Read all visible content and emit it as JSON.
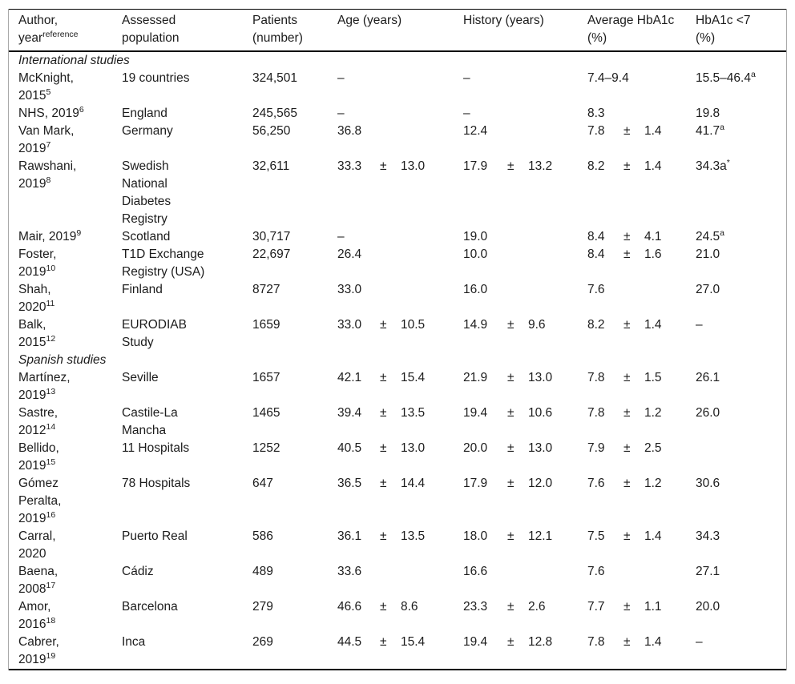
{
  "table": {
    "headers": {
      "author": {
        "line1": "Author,",
        "line2": "year",
        "sup": "reference"
      },
      "population": "Assessed\npopulation",
      "patients": "Patients\n(number)",
      "age": "Age (years)",
      "history": "History (years)",
      "avg_hba1c": "Average HbA1c\n(%)",
      "hba1c_lt7": "HbA1c <7\n(%)"
    },
    "rows": [
      {
        "type": "section",
        "label": "International studies"
      },
      {
        "type": "study",
        "author_lines": [
          "McKnight,",
          "2015"
        ],
        "author_sup": "5",
        "population": "19 countries",
        "patients": "324,501",
        "age": {
          "v": "–",
          "pm": "",
          "sd": ""
        },
        "history": {
          "v": "–",
          "pm": "",
          "sd": ""
        },
        "hba1c": {
          "v": "7.4–9.4",
          "pm": "",
          "sd": ""
        },
        "lt7": {
          "v": "15.5–46.4",
          "sup": "a"
        }
      },
      {
        "type": "study",
        "author_lines": [
          "NHS, 2019"
        ],
        "author_sup": "6",
        "population": "England",
        "patients": "245,565",
        "age": {
          "v": "–",
          "pm": "",
          "sd": ""
        },
        "history": {
          "v": "–",
          "pm": "",
          "sd": ""
        },
        "hba1c": {
          "v": "8.3",
          "pm": "",
          "sd": ""
        },
        "lt7": {
          "v": "19.8",
          "sup": ""
        }
      },
      {
        "type": "study",
        "author_lines": [
          "Van Mark,",
          "2019"
        ],
        "author_sup": "7",
        "population": "Germany",
        "patients": "56,250",
        "age": {
          "v": "36.8",
          "pm": "",
          "sd": ""
        },
        "history": {
          "v": "12.4",
          "pm": "",
          "sd": ""
        },
        "hba1c": {
          "v": "7.8",
          "pm": "±",
          "sd": "1.4"
        },
        "lt7": {
          "v": "41.7",
          "sup": "a"
        }
      },
      {
        "type": "study",
        "author_lines": [
          "Rawshani,",
          "2019"
        ],
        "author_sup": "8",
        "population": "Swedish\nNational\nDiabetes\nRegistry",
        "patients": "32,611",
        "age": {
          "v": "33.3",
          "pm": "±",
          "sd": "13.0"
        },
        "history": {
          "v": "17.9",
          "pm": "±",
          "sd": "13.2"
        },
        "hba1c": {
          "v": "8.2",
          "pm": "±",
          "sd": "1.4"
        },
        "lt7": {
          "v": "34.3a",
          "sup": "*"
        }
      },
      {
        "type": "study",
        "author_lines": [
          "Mair, 2019"
        ],
        "author_sup": "9",
        "population": "Scotland",
        "patients": "30,717",
        "age": {
          "v": "–",
          "pm": "",
          "sd": ""
        },
        "history": {
          "v": "19.0",
          "pm": "",
          "sd": ""
        },
        "hba1c": {
          "v": "8.4",
          "pm": "±",
          "sd": "4.1"
        },
        "lt7": {
          "v": "24.5",
          "sup": "a"
        }
      },
      {
        "type": "study",
        "author_lines": [
          "Foster,",
          "2019"
        ],
        "author_sup": "10",
        "population": "T1D Exchange\nRegistry (USA)",
        "patients": "22,697",
        "age": {
          "v": "26.4",
          "pm": "",
          "sd": ""
        },
        "history": {
          "v": "10.0",
          "pm": "",
          "sd": ""
        },
        "hba1c": {
          "v": "8.4",
          "pm": "±",
          "sd": "1.6"
        },
        "lt7": {
          "v": "21.0",
          "sup": ""
        }
      },
      {
        "type": "study",
        "author_lines": [
          "Shah,",
          "2020"
        ],
        "author_sup": "11",
        "population": "Finland",
        "patients": "8727",
        "age": {
          "v": "33.0",
          "pm": "",
          "sd": ""
        },
        "history": {
          "v": "16.0",
          "pm": "",
          "sd": ""
        },
        "hba1c": {
          "v": "7.6",
          "pm": "",
          "sd": ""
        },
        "lt7": {
          "v": "27.0",
          "sup": ""
        }
      },
      {
        "type": "study",
        "author_lines": [
          "Balk,",
          "2015"
        ],
        "author_sup": "12",
        "population": "EURODIAB\nStudy",
        "patients": "1659",
        "age": {
          "v": "33.0",
          "pm": "±",
          "sd": "10.5"
        },
        "history": {
          "v": "14.9",
          "pm": "±",
          "sd": "9.6"
        },
        "hba1c": {
          "v": "8.2",
          "pm": "±",
          "sd": "1.4"
        },
        "lt7": {
          "v": "–",
          "sup": ""
        }
      },
      {
        "type": "section",
        "label": "Spanish studies"
      },
      {
        "type": "study",
        "author_lines": [
          "Martínez,",
          "2019"
        ],
        "author_sup": "13",
        "population": "Seville",
        "patients": "1657",
        "age": {
          "v": "42.1",
          "pm": "±",
          "sd": "15.4"
        },
        "history": {
          "v": "21.9",
          "pm": "±",
          "sd": "13.0"
        },
        "hba1c": {
          "v": "7.8",
          "pm": "±",
          "sd": "1.5"
        },
        "lt7": {
          "v": "26.1",
          "sup": ""
        }
      },
      {
        "type": "study",
        "author_lines": [
          "Sastre,",
          "2012"
        ],
        "author_sup": "14",
        "population": "Castile-La\nMancha",
        "patients": "1465",
        "age": {
          "v": "39.4",
          "pm": "±",
          "sd": "13.5"
        },
        "history": {
          "v": "19.4",
          "pm": "±",
          "sd": "10.6"
        },
        "hba1c": {
          "v": "7.8",
          "pm": "±",
          "sd": "1.2"
        },
        "lt7": {
          "v": "26.0",
          "sup": ""
        }
      },
      {
        "type": "study",
        "author_lines": [
          "Bellido,",
          "2019"
        ],
        "author_sup": "15",
        "population": "11 Hospitals",
        "patients": "1252",
        "age": {
          "v": "40.5",
          "pm": "±",
          "sd": "13.0"
        },
        "history": {
          "v": "20.0",
          "pm": "±",
          "sd": "13.0"
        },
        "hba1c": {
          "v": "7.9",
          "pm": "±",
          "sd": "2.5"
        },
        "lt7": {
          "v": "",
          "sup": ""
        }
      },
      {
        "type": "study",
        "author_lines": [
          "Gómez",
          "Peralta,",
          "2019"
        ],
        "author_sup": "16",
        "population": "78 Hospitals",
        "patients": "647",
        "age": {
          "v": "36.5",
          "pm": "±",
          "sd": "14.4"
        },
        "history": {
          "v": "17.9",
          "pm": "±",
          "sd": "12.0"
        },
        "hba1c": {
          "v": "7.6",
          "pm": "±",
          "sd": "1.2"
        },
        "lt7": {
          "v": "30.6",
          "sup": ""
        }
      },
      {
        "type": "study",
        "author_lines": [
          "Carral,",
          "2020"
        ],
        "author_sup": "",
        "population": "Puerto Real",
        "patients": "586",
        "age": {
          "v": "36.1",
          "pm": "±",
          "sd": "13.5"
        },
        "history": {
          "v": "18.0",
          "pm": "±",
          "sd": "12.1"
        },
        "hba1c": {
          "v": "7.5",
          "pm": "±",
          "sd": "1.4"
        },
        "lt7": {
          "v": "34.3",
          "sup": ""
        }
      },
      {
        "type": "study",
        "author_lines": [
          "Baena,",
          "2008"
        ],
        "author_sup": "17",
        "population": "Cádiz",
        "patients": "489",
        "age": {
          "v": "33.6",
          "pm": "",
          "sd": ""
        },
        "history": {
          "v": "16.6",
          "pm": "",
          "sd": ""
        },
        "hba1c": {
          "v": "7.6",
          "pm": "",
          "sd": ""
        },
        "lt7": {
          "v": "27.1",
          "sup": ""
        }
      },
      {
        "type": "study",
        "author_lines": [
          "Amor,",
          "2016"
        ],
        "author_sup": "18",
        "population": "Barcelona",
        "patients": "279",
        "age": {
          "v": "46.6",
          "pm": "±",
          "sd": "8.6"
        },
        "history": {
          "v": "23.3",
          "pm": "±",
          "sd": "2.6"
        },
        "hba1c": {
          "v": "7.7",
          "pm": "±",
          "sd": "1.1"
        },
        "lt7": {
          "v": "20.0",
          "sup": ""
        }
      },
      {
        "type": "study",
        "author_lines": [
          "Cabrer,",
          "2019"
        ],
        "author_sup": "19",
        "population": "Inca",
        "patients": "269",
        "age": {
          "v": "44.5",
          "pm": "±",
          "sd": "15.4"
        },
        "history": {
          "v": "19.4",
          "pm": "±",
          "sd": "12.8"
        },
        "hba1c": {
          "v": "7.8",
          "pm": "±",
          "sd": "1.4"
        },
        "lt7": {
          "v": "–",
          "sup": ""
        }
      }
    ]
  }
}
